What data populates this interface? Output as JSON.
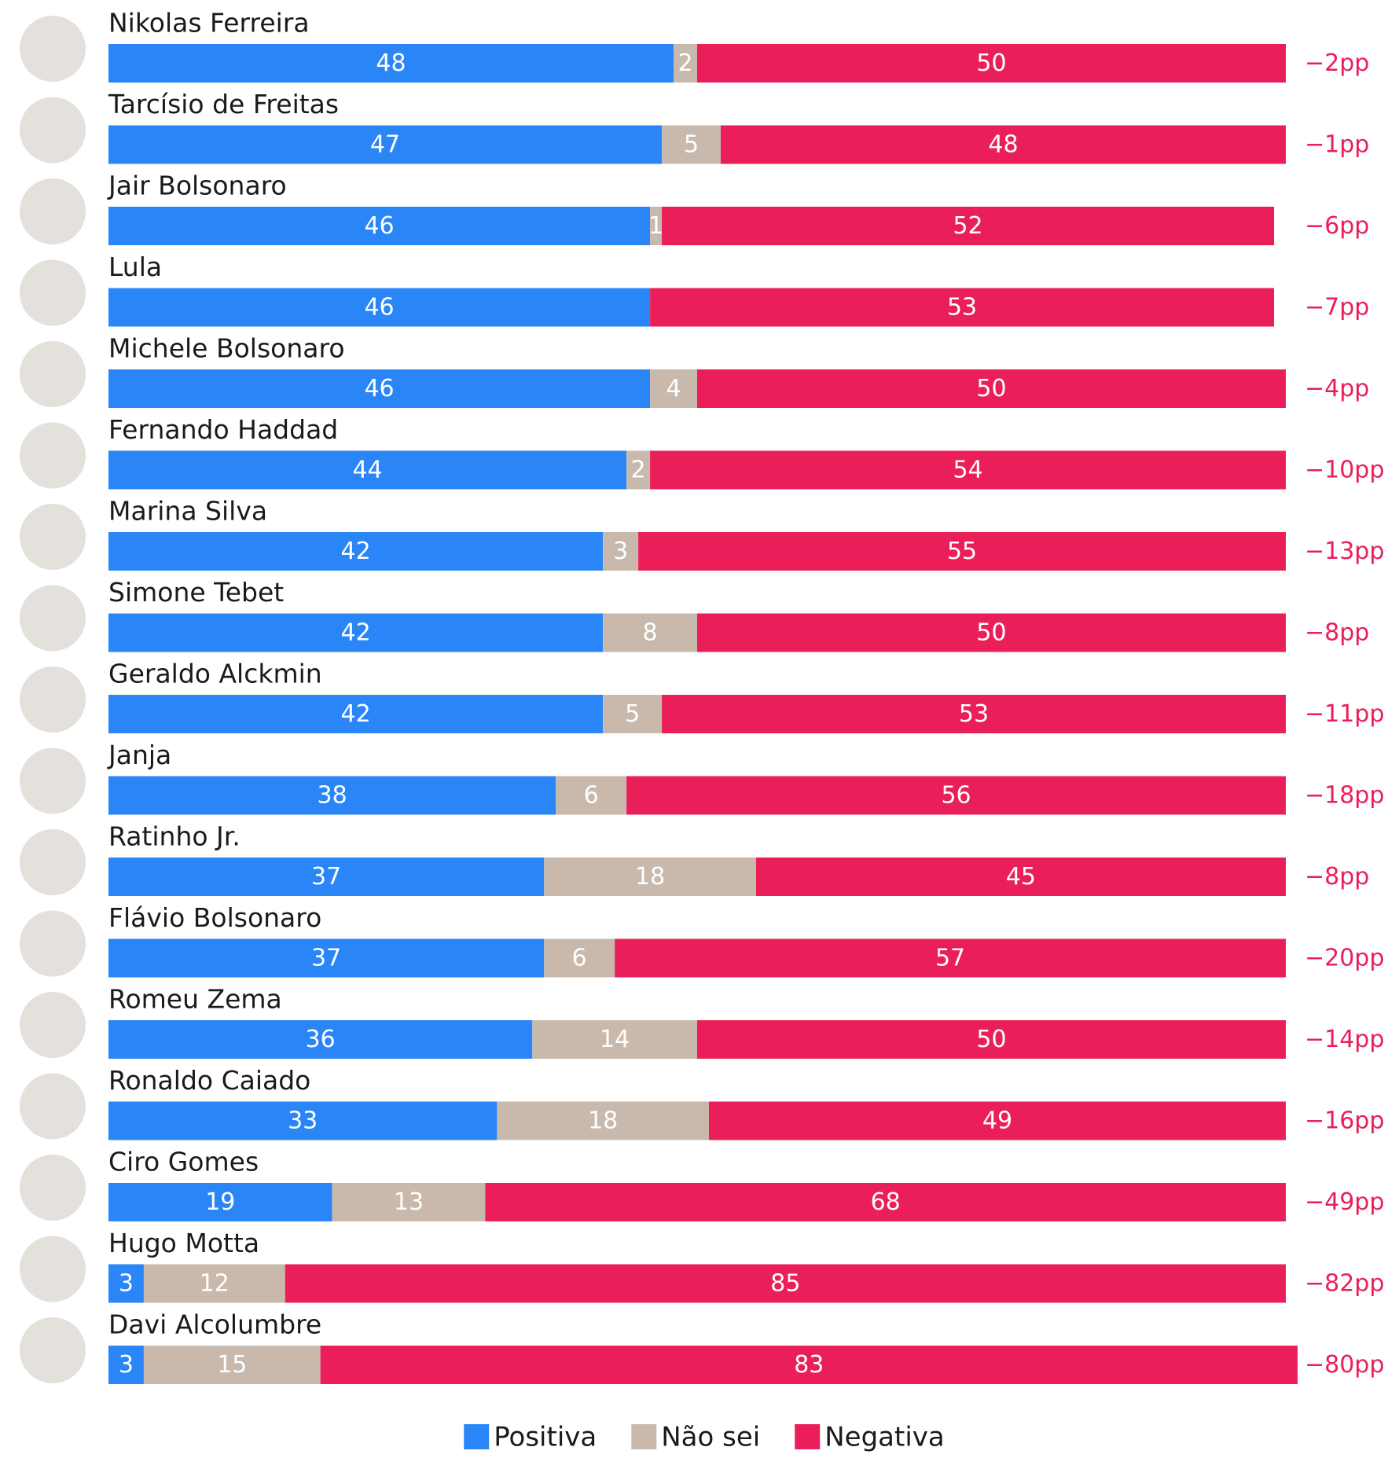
{
  "chart_data": {
    "type": "stacked-bar",
    "categories": [
      "Nikolas Ferreira",
      "Tarcísio de Freitas",
      "Jair Bolsonaro",
      "Lula",
      "Michele Bolsonaro",
      "Fernando Haddad",
      "Marina Silva",
      "Simone Tebet",
      "Geraldo Alckmin",
      "Janja",
      "Ratinho Jr.",
      "Flávio Bolsonaro",
      "Romeu Zema",
      "Ronaldo Caiado",
      "Ciro Gomes",
      "Hugo Motta",
      "Davi Alcolumbre"
    ],
    "series": [
      {
        "name": "Positiva",
        "color": "#2a86f7",
        "values": [
          48,
          47,
          46,
          46,
          46,
          44,
          42,
          42,
          42,
          38,
          37,
          37,
          36,
          33,
          19,
          3,
          3
        ]
      },
      {
        "name": "Não sei",
        "color": "#c9b9ad",
        "values": [
          2,
          5,
          1,
          null,
          4,
          2,
          3,
          8,
          5,
          6,
          18,
          6,
          14,
          18,
          13,
          12,
          15
        ]
      },
      {
        "name": "Negativa",
        "color": "#ea1f5a",
        "values": [
          50,
          48,
          52,
          53,
          50,
          54,
          55,
          50,
          53,
          56,
          45,
          57,
          50,
          49,
          68,
          85,
          83
        ]
      }
    ],
    "difference": {
      "color": "#ea1f5a",
      "values": [
        -2,
        -1,
        -6,
        -7,
        -4,
        -10,
        -13,
        -8,
        -11,
        -18,
        -8,
        -20,
        -14,
        -16,
        -49,
        -82,
        -80
      ],
      "value_labels": [
        "−2pp",
        "−1pp",
        "−6pp",
        "−7pp",
        "−4pp",
        "−10pp",
        "−13pp",
        "−8pp",
        "−11pp",
        "−18pp",
        "−8pp",
        "−20pp",
        "−14pp",
        "−16pp",
        "−49pp",
        "−82pp",
        "−80pp"
      ]
    },
    "xlim": [
      0,
      100
    ]
  }
}
